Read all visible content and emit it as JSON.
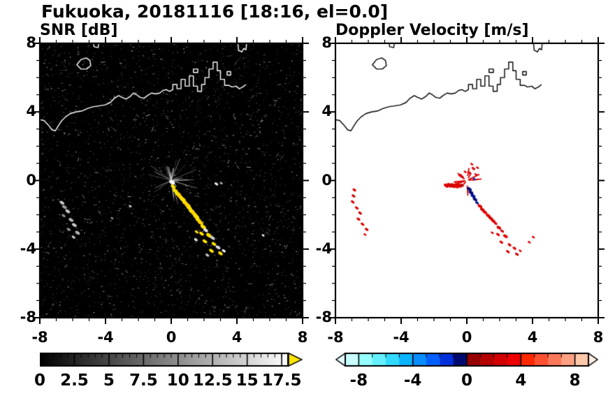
{
  "header": {
    "title": "Fukuoka, 20181116 [18:16, el=0.0]"
  },
  "chart_data": [
    {
      "type": "heatmap",
      "panel": "snr",
      "title": "SNR [dB]",
      "xlim": [
        -8,
        8
      ],
      "ylim": [
        -8,
        8
      ],
      "xticks": [
        -8,
        -4,
        0,
        4,
        8
      ],
      "yticks": [
        -8,
        -4,
        0,
        4,
        8
      ],
      "minor_tick_step": 1,
      "background": "#000000",
      "coastline_color": "#ffffff",
      "colorbar": {
        "label_values": [
          0,
          2.5,
          5,
          7.5,
          10,
          12.5,
          15,
          17.5
        ],
        "range": [
          0,
          18
        ],
        "style": "grayscale",
        "start_color": "#000000",
        "end_color": "#ffffff",
        "over_arrow_color": "#ffe600",
        "tick_minor_step": 0.5,
        "tick_major_step": 2.5
      },
      "noise": {
        "speckle_count": 2200,
        "bright_count": 520,
        "streak_count": 95,
        "seed": 42
      },
      "radar_center": {
        "x": 0,
        "y": 0,
        "spoke_count": 26,
        "bright_spoke_count": 7,
        "spoke_color": "#b9b9b9"
      },
      "echoes": [
        [
          0.05,
          -0.1,
          3,
          "#ffffff"
        ],
        [
          0.12,
          -0.35,
          2.6,
          "#ffe100"
        ],
        [
          0.25,
          -0.6,
          3,
          "#ffe100"
        ],
        [
          0.42,
          -0.8,
          3.4,
          "#ffe100"
        ],
        [
          0.55,
          -0.95,
          3,
          "#ffd000"
        ],
        [
          0.7,
          -1.1,
          3.4,
          "#ffe100"
        ],
        [
          0.85,
          -1.3,
          3,
          "#ffe100"
        ],
        [
          1.0,
          -1.45,
          3.4,
          "#ffd000"
        ],
        [
          1.1,
          -1.6,
          3,
          "#ffe100"
        ],
        [
          1.25,
          -1.8,
          3.4,
          "#ffe100"
        ],
        [
          1.4,
          -1.95,
          3,
          "#ffd000"
        ],
        [
          1.52,
          -2.1,
          3.4,
          "#ffe100"
        ],
        [
          1.65,
          -2.3,
          3,
          "#ffe100"
        ],
        [
          1.78,
          -2.45,
          3,
          "#ffd000"
        ],
        [
          1.95,
          -2.7,
          3,
          "#ffe100"
        ],
        [
          2.1,
          -2.9,
          2.5,
          "#e8e8e8"
        ],
        [
          1.85,
          -3.1,
          2.5,
          "#ffe100"
        ],
        [
          2.3,
          -3.2,
          3,
          "#ffe100"
        ],
        [
          2.52,
          -3.35,
          2.5,
          "#cccccc"
        ],
        [
          2.05,
          -3.55,
          2.5,
          "#ffe100"
        ],
        [
          2.6,
          -3.7,
          2.5,
          "#ffe100"
        ],
        [
          2.85,
          -3.9,
          2.5,
          "#e0e0e0"
        ],
        [
          2.45,
          -4.1,
          2.5,
          "#ffe100"
        ],
        [
          3.0,
          -4.25,
          2.5,
          "#ffe100"
        ],
        [
          2.2,
          -4.35,
          2,
          "#cccccc"
        ],
        [
          3.2,
          -4.1,
          2,
          "#ffffff"
        ],
        [
          1.55,
          -3.0,
          2,
          "#ffe100"
        ],
        [
          1.5,
          -3.45,
          2,
          "#e8e8e8"
        ],
        [
          -6.65,
          -1.3,
          2.5,
          "#c8c8c8"
        ],
        [
          -6.5,
          -1.55,
          2.5,
          "#a0a0a0"
        ],
        [
          -6.3,
          -1.8,
          2.5,
          "#c8c8c8"
        ],
        [
          -6.55,
          -2.05,
          2,
          "#909090"
        ],
        [
          -6.1,
          -2.3,
          2.5,
          "#b4b4b4"
        ],
        [
          -5.9,
          -2.6,
          2.5,
          "#c8c8c8"
        ],
        [
          -6.25,
          -2.85,
          2,
          "#989898"
        ],
        [
          -5.7,
          -3.05,
          2.5,
          "#b4b4b4"
        ],
        [
          -5.95,
          -3.3,
          2,
          "#c8c8c8"
        ],
        [
          5.6,
          -3.2,
          1.5,
          "#ffffff"
        ],
        [
          2.75,
          -0.2,
          2,
          "#e8e8e8"
        ],
        [
          3.05,
          -0.15,
          1.5,
          "#cccccc"
        ],
        [
          -2.5,
          -1.5,
          1.5,
          "#dddddd"
        ],
        [
          -3.6,
          -2.2,
          1.5,
          "#999999"
        ]
      ]
    },
    {
      "type": "heatmap",
      "panel": "doppler",
      "title": "Doppler Velocity [m/s]",
      "xlim": [
        -8,
        8
      ],
      "ylim": [
        -8,
        8
      ],
      "xticks": [
        -8,
        -4,
        0,
        4,
        8
      ],
      "yticks": [
        -8,
        -4,
        0,
        4,
        8
      ],
      "minor_tick_step": 1,
      "background": "#ffffff",
      "coastline_color": "#000000",
      "colorbar": {
        "label_values": [
          -8,
          -4,
          0,
          4,
          8
        ],
        "range": [
          -9,
          9
        ],
        "style": "segments",
        "segment_colors": [
          "#c8ffff",
          "#96ffff",
          "#64f0ff",
          "#32d8ff",
          "#0ab4ff",
          "#0a8cff",
          "#0060ff",
          "#0030dc",
          "#000a6e",
          "#960000",
          "#b40000",
          "#d20000",
          "#ee0000",
          "#ff2800",
          "#ff5032",
          "#ff785a",
          "#ffa082",
          "#ffc8aa"
        ],
        "under_arrow_color": "#e6ffff",
        "over_arrow_color": "#ffeede",
        "tick_minor_step": 1,
        "tick_major_step": 4
      },
      "center_burst": {
        "x": 0,
        "y": 0,
        "count": 14,
        "color": "#dc0000"
      },
      "echoes": [
        [
          -1.25,
          -0.3,
          2.6,
          "#e00000"
        ],
        [
          -1.05,
          -0.28,
          3,
          "#e00000"
        ],
        [
          -0.85,
          -0.3,
          3,
          "#d00000"
        ],
        [
          -0.65,
          -0.32,
          3,
          "#e00000"
        ],
        [
          -0.45,
          -0.3,
          2.6,
          "#e00000"
        ],
        [
          -0.3,
          -0.28,
          2,
          "#b40000"
        ],
        [
          0.15,
          0.45,
          2,
          "#e00000"
        ],
        [
          0.4,
          0.7,
          2,
          "#e00000"
        ],
        [
          -0.1,
          0.5,
          1.6,
          "#e00000"
        ],
        [
          0.55,
          0.35,
          1.6,
          "#d00000"
        ],
        [
          0.3,
          0.95,
          1.6,
          "#e00000"
        ],
        [
          0.65,
          0.75,
          1.6,
          "#e00000"
        ],
        [
          0.45,
          0.1,
          1.6,
          "#0030c0"
        ],
        [
          0.15,
          -0.5,
          2.6,
          "#000a78"
        ],
        [
          0.25,
          -0.7,
          2.6,
          "#000a78"
        ],
        [
          0.38,
          -0.9,
          2.6,
          "#001090"
        ],
        [
          0.5,
          -1.1,
          2.4,
          "#000a78"
        ],
        [
          0.62,
          -1.3,
          2,
          "#001090"
        ],
        [
          0.8,
          -1.5,
          2.5,
          "#e00000"
        ],
        [
          0.95,
          -1.7,
          2.5,
          "#d00000"
        ],
        [
          1.1,
          -1.85,
          2.5,
          "#e00000"
        ],
        [
          1.3,
          -2.05,
          2.5,
          "#e00000"
        ],
        [
          1.45,
          -2.2,
          2.5,
          "#d00000"
        ],
        [
          1.6,
          -2.35,
          2.5,
          "#e00000"
        ],
        [
          1.75,
          -2.5,
          2,
          "#e00000"
        ],
        [
          1.95,
          -2.75,
          2.5,
          "#e00000"
        ],
        [
          2.15,
          -2.95,
          2,
          "#d00000"
        ],
        [
          1.9,
          -3.15,
          2,
          "#e00000"
        ],
        [
          2.35,
          -3.25,
          2.5,
          "#e00000"
        ],
        [
          2.1,
          -3.6,
          2,
          "#e00000"
        ],
        [
          2.6,
          -3.75,
          2,
          "#d00000"
        ],
        [
          2.9,
          -3.95,
          2,
          "#e00000"
        ],
        [
          2.5,
          -4.15,
          2,
          "#e00000"
        ],
        [
          3.05,
          -4.3,
          2,
          "#d00000"
        ],
        [
          1.55,
          -3.05,
          1.6,
          "#e00000"
        ],
        [
          3.25,
          -4.1,
          1.6,
          "#e00000"
        ],
        [
          -6.85,
          -0.55,
          2,
          "#e00000"
        ],
        [
          -6.9,
          -0.9,
          2,
          "#d00000"
        ],
        [
          -6.95,
          -1.25,
          2,
          "#e00000"
        ],
        [
          -6.7,
          -1.6,
          2,
          "#e00000"
        ],
        [
          -6.5,
          -1.9,
          2,
          "#d00000"
        ],
        [
          -6.6,
          -2.25,
          2,
          "#e00000"
        ],
        [
          -6.35,
          -2.55,
          2,
          "#e00000"
        ],
        [
          -6.1,
          -2.85,
          2,
          "#d00000"
        ],
        [
          -6.2,
          -3.15,
          1.6,
          "#e00000"
        ],
        [
          4.05,
          -3.3,
          1.6,
          "#e00000"
        ],
        [
          3.8,
          -3.6,
          1.6,
          "#d00000"
        ]
      ]
    }
  ],
  "coastline": {
    "lines": [
      [
        [
          -8.05,
          3.55
        ],
        [
          -7.75,
          3.5
        ],
        [
          -7.5,
          3.25
        ],
        [
          -7.25,
          2.95
        ],
        [
          -7.05,
          2.9
        ],
        [
          -6.9,
          3.15
        ],
        [
          -6.7,
          3.45
        ],
        [
          -6.45,
          3.7
        ],
        [
          -6.15,
          3.9
        ],
        [
          -5.8,
          4.0
        ],
        [
          -5.45,
          4.05
        ],
        [
          -5.1,
          4.2
        ],
        [
          -4.75,
          4.3
        ],
        [
          -4.4,
          4.35
        ],
        [
          -4.05,
          4.4
        ],
        [
          -3.7,
          4.55
        ],
        [
          -3.45,
          4.8
        ],
        [
          -3.2,
          4.95
        ],
        [
          -3.0,
          4.85
        ],
        [
          -2.75,
          4.75
        ],
        [
          -2.5,
          4.9
        ],
        [
          -2.3,
          5.1
        ],
        [
          -2.1,
          5.0
        ],
        [
          -1.9,
          4.85
        ],
        [
          -1.65,
          4.8
        ],
        [
          -1.45,
          4.95
        ],
        [
          -1.2,
          5.1
        ],
        [
          -0.95,
          5.05
        ],
        [
          -0.7,
          5.1
        ],
        [
          -0.5,
          5.25
        ],
        [
          -0.3,
          5.3
        ],
        [
          -0.1,
          5.2
        ],
        [
          0.1,
          5.3
        ],
        [
          0.1,
          5.6
        ],
        [
          0.35,
          5.6
        ],
        [
          0.35,
          5.35
        ],
        [
          0.6,
          5.35
        ],
        [
          0.6,
          5.9
        ],
        [
          0.85,
          5.9
        ],
        [
          0.85,
          5.5
        ],
        [
          1.1,
          5.5
        ],
        [
          1.1,
          6.1
        ],
        [
          1.35,
          6.1
        ],
        [
          1.35,
          5.5
        ],
        [
          1.6,
          5.5
        ],
        [
          1.6,
          5.2
        ],
        [
          1.85,
          5.2
        ],
        [
          1.85,
          5.6
        ],
        [
          2.05,
          5.6
        ],
        [
          2.05,
          6.0
        ],
        [
          2.3,
          6.0
        ],
        [
          2.3,
          6.5
        ],
        [
          2.55,
          6.5
        ],
        [
          2.55,
          6.9
        ],
        [
          2.8,
          6.9
        ],
        [
          2.8,
          6.4
        ],
        [
          3.0,
          6.4
        ],
        [
          3.0,
          5.9
        ],
        [
          3.25,
          5.9
        ],
        [
          3.25,
          5.55
        ],
        [
          3.5,
          5.55
        ],
        [
          3.7,
          5.45
        ],
        [
          3.95,
          5.5
        ],
        [
          4.15,
          5.35
        ],
        [
          4.35,
          5.45
        ],
        [
          4.55,
          5.6
        ]
      ],
      [
        [
          -4.75,
          8.1
        ],
        [
          -4.7,
          7.8
        ],
        [
          -4.45,
          7.75
        ],
        [
          -4.4,
          8.1
        ]
      ],
      [
        [
          4.05,
          8.1
        ],
        [
          4.1,
          7.6
        ],
        [
          4.3,
          7.5
        ],
        [
          4.42,
          7.7
        ],
        [
          4.55,
          7.62
        ],
        [
          4.6,
          8.1
        ]
      ]
    ],
    "polygons": [
      [
        [
          -5.75,
          6.75
        ],
        [
          -5.5,
          7.05
        ],
        [
          -5.18,
          7.15
        ],
        [
          -4.95,
          7.0
        ],
        [
          -4.9,
          6.7
        ],
        [
          -5.15,
          6.5
        ],
        [
          -5.5,
          6.5
        ]
      ],
      [
        [
          1.35,
          6.3
        ],
        [
          1.62,
          6.3
        ],
        [
          1.62,
          6.5
        ],
        [
          1.35,
          6.5
        ]
      ],
      [
        [
          3.4,
          6.15
        ],
        [
          3.62,
          6.15
        ],
        [
          3.62,
          6.35
        ],
        [
          3.4,
          6.35
        ]
      ]
    ]
  }
}
